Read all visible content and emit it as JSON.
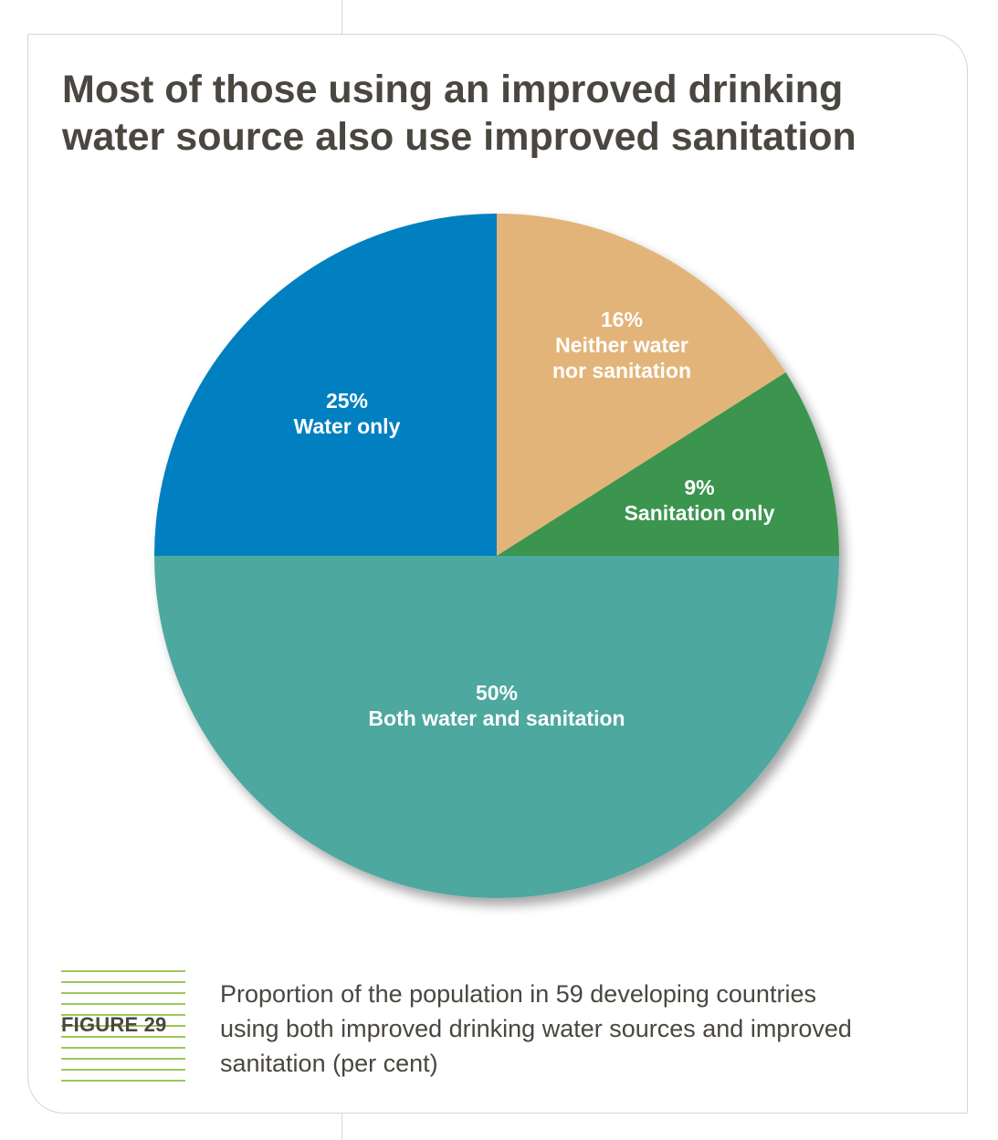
{
  "title": "Most of those using an improved drinking water source also use improved sanitation",
  "figure": {
    "label": "FIGURE 29",
    "caption": "Proportion of the population in 59 developing countries using both improved drinking water sources and improved sanitation (per cent)"
  },
  "chart_data": {
    "type": "pie",
    "title": "Most of those using an improved drinking water source also use improved sanitation",
    "start": "12 o'clock, clockwise",
    "slices": [
      {
        "label": "Neither water nor sanitation",
        "value": 16,
        "value_label": "16%",
        "label_lines": [
          "Neither water",
          "nor sanitation"
        ],
        "color": "#e3b479"
      },
      {
        "label": "Sanitation only",
        "value": 9,
        "value_label": "9%",
        "label_lines": [
          "Sanitation only"
        ],
        "color": "#3a954f"
      },
      {
        "label": "Both water and sanitation",
        "value": 50,
        "value_label": "50%",
        "label_lines": [
          "Both water and sanitation"
        ],
        "color": "#4ea89f"
      },
      {
        "label": "Water only",
        "value": 25,
        "value_label": "25%",
        "label_lines": [
          "Water only"
        ],
        "color": "#0080c0"
      }
    ]
  },
  "colors": {
    "title_text": "#4a4640",
    "accent_green": "#9cc85a",
    "card_border": "#d5d5d2"
  }
}
